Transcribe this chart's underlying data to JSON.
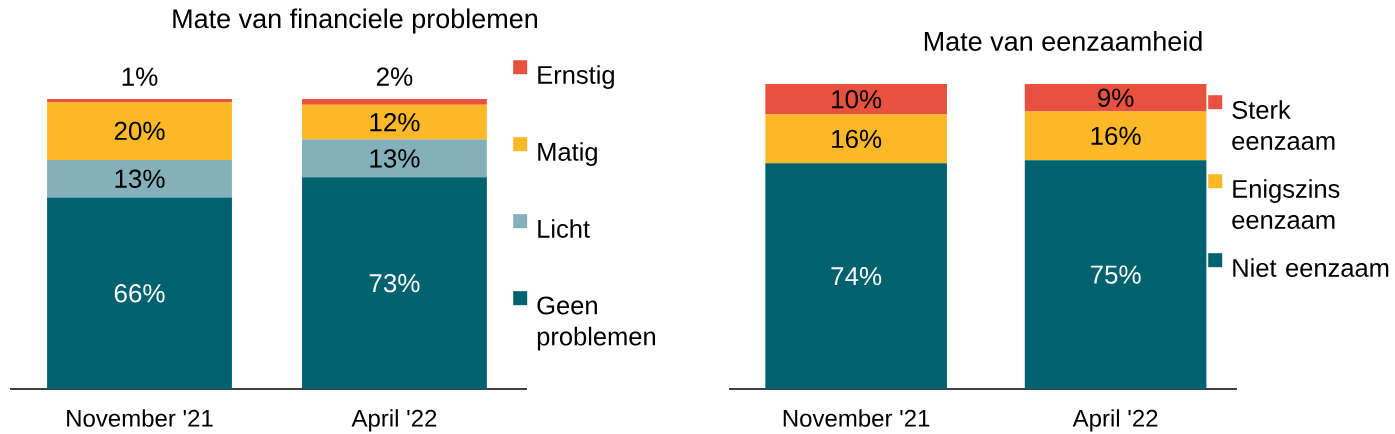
{
  "chart_data": [
    {
      "type": "bar",
      "stacked": true,
      "title": "Mate van financiele problemen",
      "categories": [
        "November '21",
        "April '22"
      ],
      "series": [
        {
          "name": "Geen problemen",
          "color": "#00626f",
          "values": [
            66,
            73
          ],
          "value_labels": [
            "66%",
            "73%"
          ]
        },
        {
          "name": "Licht",
          "color": "#84b0bb",
          "values": [
            13,
            13
          ],
          "value_labels": [
            "13%",
            "13%"
          ]
        },
        {
          "name": "Matig",
          "color": "#fcb827",
          "values": [
            20,
            12
          ],
          "value_labels": [
            "20%",
            "12%"
          ]
        },
        {
          "name": "Ernstig",
          "color": "#e8513f",
          "values": [
            1,
            2
          ],
          "value_labels": [
            "1%",
            "2%"
          ]
        }
      ],
      "ylim": [
        0,
        100
      ],
      "tick_labels": "x",
      "legend": "right"
    },
    {
      "type": "bar",
      "stacked": true,
      "title": "Mate van eenzaamheid",
      "categories": [
        "November '21",
        "April '22"
      ],
      "series": [
        {
          "name": "Niet eenzaam",
          "color": "#00626f",
          "values": [
            74,
            75
          ],
          "value_labels": [
            "74%",
            "75%"
          ]
        },
        {
          "name": "Enigszins eenzaam",
          "color": "#fcb827",
          "values": [
            16,
            16
          ],
          "value_labels": [
            "16%",
            "16%"
          ]
        },
        {
          "name": "Sterk eenzaam",
          "color": "#e8513f",
          "values": [
            10,
            9
          ],
          "value_labels": [
            "10%",
            "9%"
          ]
        }
      ],
      "ylim": [
        0,
        100
      ],
      "tick_labels": "x",
      "legend": "right"
    }
  ]
}
